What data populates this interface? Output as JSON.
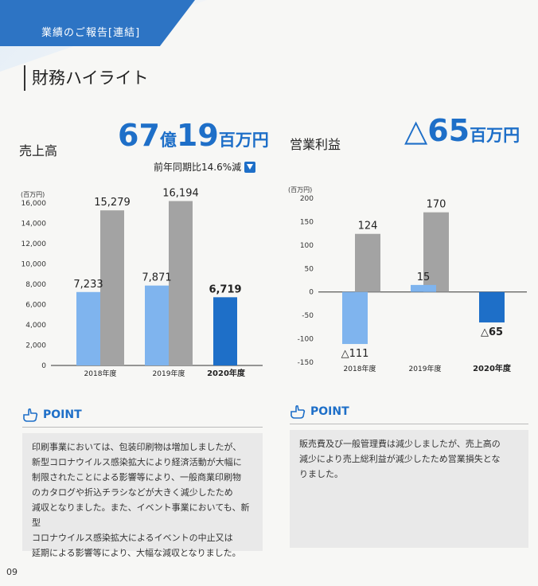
{
  "header": {
    "banner": "業績のご報告[連結]",
    "section_title": "財務ハイライト"
  },
  "sales": {
    "label": "売上高",
    "headline_n1": "67",
    "headline_u1": "億",
    "headline_n2": "19",
    "headline_u2": "百万円",
    "yoy": "前年同期比14.6%減"
  },
  "profit": {
    "label": "営業利益",
    "headline_n": "△65",
    "headline_u": "百万円"
  },
  "colors": {
    "accent": "#1e6fc8",
    "light_blue": "#7fb4ee",
    "gray": "#a3a3a3",
    "dark_blue": "#1e6fc8"
  },
  "chart_data": [
    {
      "type": "bar",
      "unit_label": "(百万円)",
      "categories": [
        "2018年度",
        "2019年度",
        "2020年度"
      ],
      "ylim": [
        0,
        16000
      ],
      "yticks": [
        "0",
        "2,000",
        "4,000",
        "6,000",
        "8,000",
        "10,000",
        "12,000",
        "14,000",
        "16,000"
      ],
      "ytick_values": [
        0,
        2000,
        4000,
        6000,
        8000,
        10000,
        12000,
        14000,
        16000
      ],
      "series": [
        {
          "values": [
            7233,
            7871,
            6719
          ],
          "labels": [
            "7,233",
            "7,871",
            "6,719"
          ]
        },
        {
          "values": [
            15279,
            16194,
            null
          ],
          "labels": [
            "15,279",
            "16,194",
            ""
          ]
        }
      ]
    },
    {
      "type": "bar",
      "unit_label": "(百万円)",
      "categories": [
        "2018年度",
        "2019年度",
        "2020年度"
      ],
      "ylim": [
        -150,
        200
      ],
      "yticks": [
        "-150",
        "-100",
        "-50",
        "0",
        "50",
        "100",
        "150",
        "200"
      ],
      "ytick_values": [
        -150,
        -100,
        -50,
        0,
        50,
        100,
        150,
        200
      ],
      "series": [
        {
          "values": [
            -111,
            15,
            -65
          ],
          "labels": [
            "△111",
            "15",
            "△65"
          ]
        },
        {
          "values": [
            124,
            170,
            null
          ],
          "labels": [
            "124",
            "170",
            ""
          ]
        }
      ]
    }
  ],
  "points": [
    {
      "heading": "POINT",
      "lines": [
        "印刷事業においては、包装印刷物は増加しましたが、",
        "新型コロナウイルス感染拡大により経済活動が大幅に",
        "制限されたことによる影響等により、一般商業印刷物",
        "のカタログや折込チラシなどが大きく減少したため",
        "減収となりました。また、イベント事業においても、新型",
        "コロナウイルス感染拡大によるイベントの中止又は",
        "延期による影響等により、大幅な減収となりました。"
      ]
    },
    {
      "heading": "POINT",
      "lines": [
        "販売費及び一般管理費は減少しましたが、売上高の",
        "減少により売上総利益が減少したため営業損失とな",
        "りました。"
      ]
    }
  ],
  "page_number": "09"
}
